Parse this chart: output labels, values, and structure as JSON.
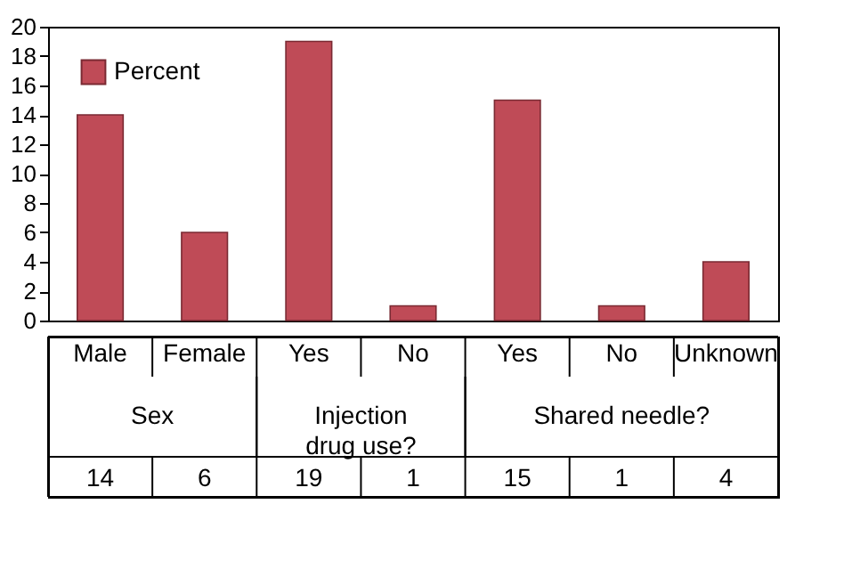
{
  "chart_data": {
    "type": "bar",
    "categories": [
      "Male",
      "Female",
      "Yes",
      "No",
      "Yes",
      "No",
      "Unknown"
    ],
    "series": [
      {
        "name": "Percent",
        "color": "#bf4b57",
        "values": [
          14,
          6,
          19,
          1,
          15,
          1,
          4
        ]
      }
    ],
    "ylim": [
      0,
      20
    ],
    "yticks": [
      0,
      2,
      4,
      6,
      8,
      10,
      12,
      14,
      16,
      18,
      20
    ],
    "legend": "top left",
    "data_labels": true,
    "grid": false,
    "annotations": [
      "Sex",
      "Injection drug use?",
      "Shared needle?"
    ]
  }
}
